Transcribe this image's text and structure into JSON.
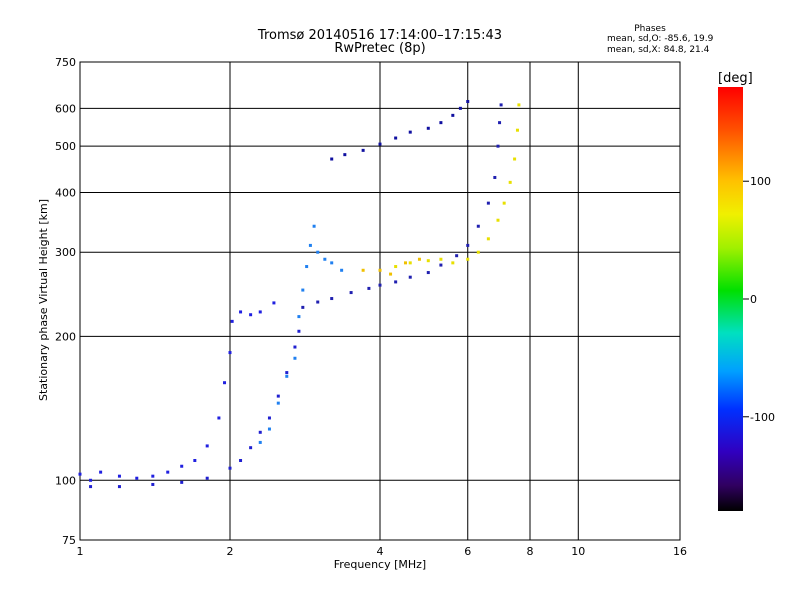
{
  "chart_data": {
    "type": "scatter",
    "title": "Tromsø 20140516 17:14:00–17:15:43",
    "subtitle": "RwPretec (8p)",
    "stats": {
      "header": "Phases",
      "line_o": "mean, sd,O: -85.6, 19.9",
      "line_x": "mean, sd,X: 84.8, 21.4"
    },
    "xlabel": "Frequency [MHz]",
    "ylabel": "Stationary phase Virtual Height [km]",
    "x_scale": "log",
    "y_scale": "log",
    "xlim": [
      1,
      16
    ],
    "ylim": [
      75,
      750
    ],
    "x_ticks": [
      1,
      2,
      4,
      6,
      8,
      10,
      16
    ],
    "x_tick_labels": [
      "1",
      "2",
      "4",
      "6",
      "8",
      "10",
      "16"
    ],
    "y_ticks": [
      75,
      100,
      200,
      300,
      400,
      500,
      600,
      750
    ],
    "y_tick_labels": [
      "75",
      "100",
      "200",
      "300",
      "400",
      "500",
      "600",
      "750"
    ],
    "grid": true,
    "colorbar": {
      "label": "[deg]",
      "range": [
        -180,
        180
      ],
      "ticks": [
        100,
        0,
        -100
      ],
      "tick_labels": [
        "100",
        "0",
        "-100"
      ]
    },
    "series": [
      {
        "name": "",
        "color": "#2020e0",
        "phase": -90,
        "points": [
          [
            1.0,
            103
          ],
          [
            1.05,
            100
          ],
          [
            1.1,
            104
          ],
          [
            1.2,
            102
          ],
          [
            1.3,
            101
          ],
          [
            1.4,
            102
          ],
          [
            1.5,
            104
          ],
          [
            1.6,
            107
          ],
          [
            1.7,
            110
          ],
          [
            1.8,
            118
          ],
          [
            1.9,
            135
          ],
          [
            1.95,
            160
          ],
          [
            2.0,
            185
          ],
          [
            2.02,
            215
          ],
          [
            2.1,
            225
          ],
          [
            2.2,
            222
          ],
          [
            2.3,
            225
          ],
          [
            2.45,
            235
          ]
        ]
      },
      {
        "name": "",
        "color": "#2020d0",
        "phase": -95,
        "points": [
          [
            1.05,
            97
          ],
          [
            1.2,
            97
          ],
          [
            1.4,
            98
          ],
          [
            1.6,
            99
          ],
          [
            1.8,
            101
          ],
          [
            2.0,
            106
          ],
          [
            2.1,
            110
          ],
          [
            2.2,
            117
          ],
          [
            2.3,
            126
          ],
          [
            2.4,
            135
          ],
          [
            2.5,
            150
          ],
          [
            2.6,
            168
          ],
          [
            2.7,
            190
          ],
          [
            2.75,
            205
          ]
        ]
      },
      {
        "name": "",
        "color": "#2080f0",
        "phase": -55,
        "points": [
          [
            2.3,
            120
          ],
          [
            2.4,
            128
          ],
          [
            2.5,
            145
          ],
          [
            2.6,
            165
          ],
          [
            2.7,
            180
          ],
          [
            2.75,
            220
          ],
          [
            2.8,
            250
          ],
          [
            2.85,
            280
          ],
          [
            2.9,
            310
          ],
          [
            2.95,
            340
          ],
          [
            3.0,
            300
          ],
          [
            3.1,
            290
          ],
          [
            3.2,
            285
          ],
          [
            3.35,
            275
          ]
        ]
      },
      {
        "name": "",
        "color": "#2020b0",
        "phase": -100,
        "points": [
          [
            2.8,
            230
          ],
          [
            3.0,
            236
          ],
          [
            3.2,
            240
          ],
          [
            3.5,
            247
          ],
          [
            3.8,
            252
          ],
          [
            4.0,
            256
          ],
          [
            4.3,
            260
          ],
          [
            4.6,
            266
          ],
          [
            5.0,
            272
          ],
          [
            5.3,
            282
          ],
          [
            5.7,
            295
          ],
          [
            6.0,
            310
          ],
          [
            6.3,
            340
          ],
          [
            6.6,
            380
          ],
          [
            6.8,
            430
          ],
          [
            6.9,
            500
          ],
          [
            6.95,
            560
          ],
          [
            7.0,
            610
          ]
        ]
      },
      {
        "name": "",
        "color": "#1010a0",
        "phase": -110,
        "points": [
          [
            3.2,
            470
          ],
          [
            3.4,
            480
          ],
          [
            3.7,
            490
          ],
          [
            4.0,
            505
          ],
          [
            4.3,
            520
          ],
          [
            4.6,
            535
          ],
          [
            5.0,
            545
          ],
          [
            5.3,
            560
          ],
          [
            5.6,
            580
          ],
          [
            5.8,
            600
          ],
          [
            6.0,
            620
          ]
        ]
      },
      {
        "name": "",
        "color": "#e8e000",
        "phase": 100,
        "points": [
          [
            4.3,
            280
          ],
          [
            4.6,
            285
          ],
          [
            5.0,
            288
          ],
          [
            5.3,
            290
          ],
          [
            5.6,
            285
          ],
          [
            6.0,
            290
          ],
          [
            6.3,
            300
          ],
          [
            6.6,
            320
          ],
          [
            6.9,
            350
          ],
          [
            7.1,
            380
          ],
          [
            7.3,
            420
          ],
          [
            7.45,
            470
          ],
          [
            7.55,
            540
          ],
          [
            7.6,
            610
          ]
        ]
      },
      {
        "name": "",
        "color": "#f0c000",
        "phase": 120,
        "points": [
          [
            3.7,
            275
          ],
          [
            4.0,
            275
          ],
          [
            4.2,
            270
          ],
          [
            4.5,
            285
          ],
          [
            4.8,
            290
          ]
        ]
      }
    ]
  }
}
